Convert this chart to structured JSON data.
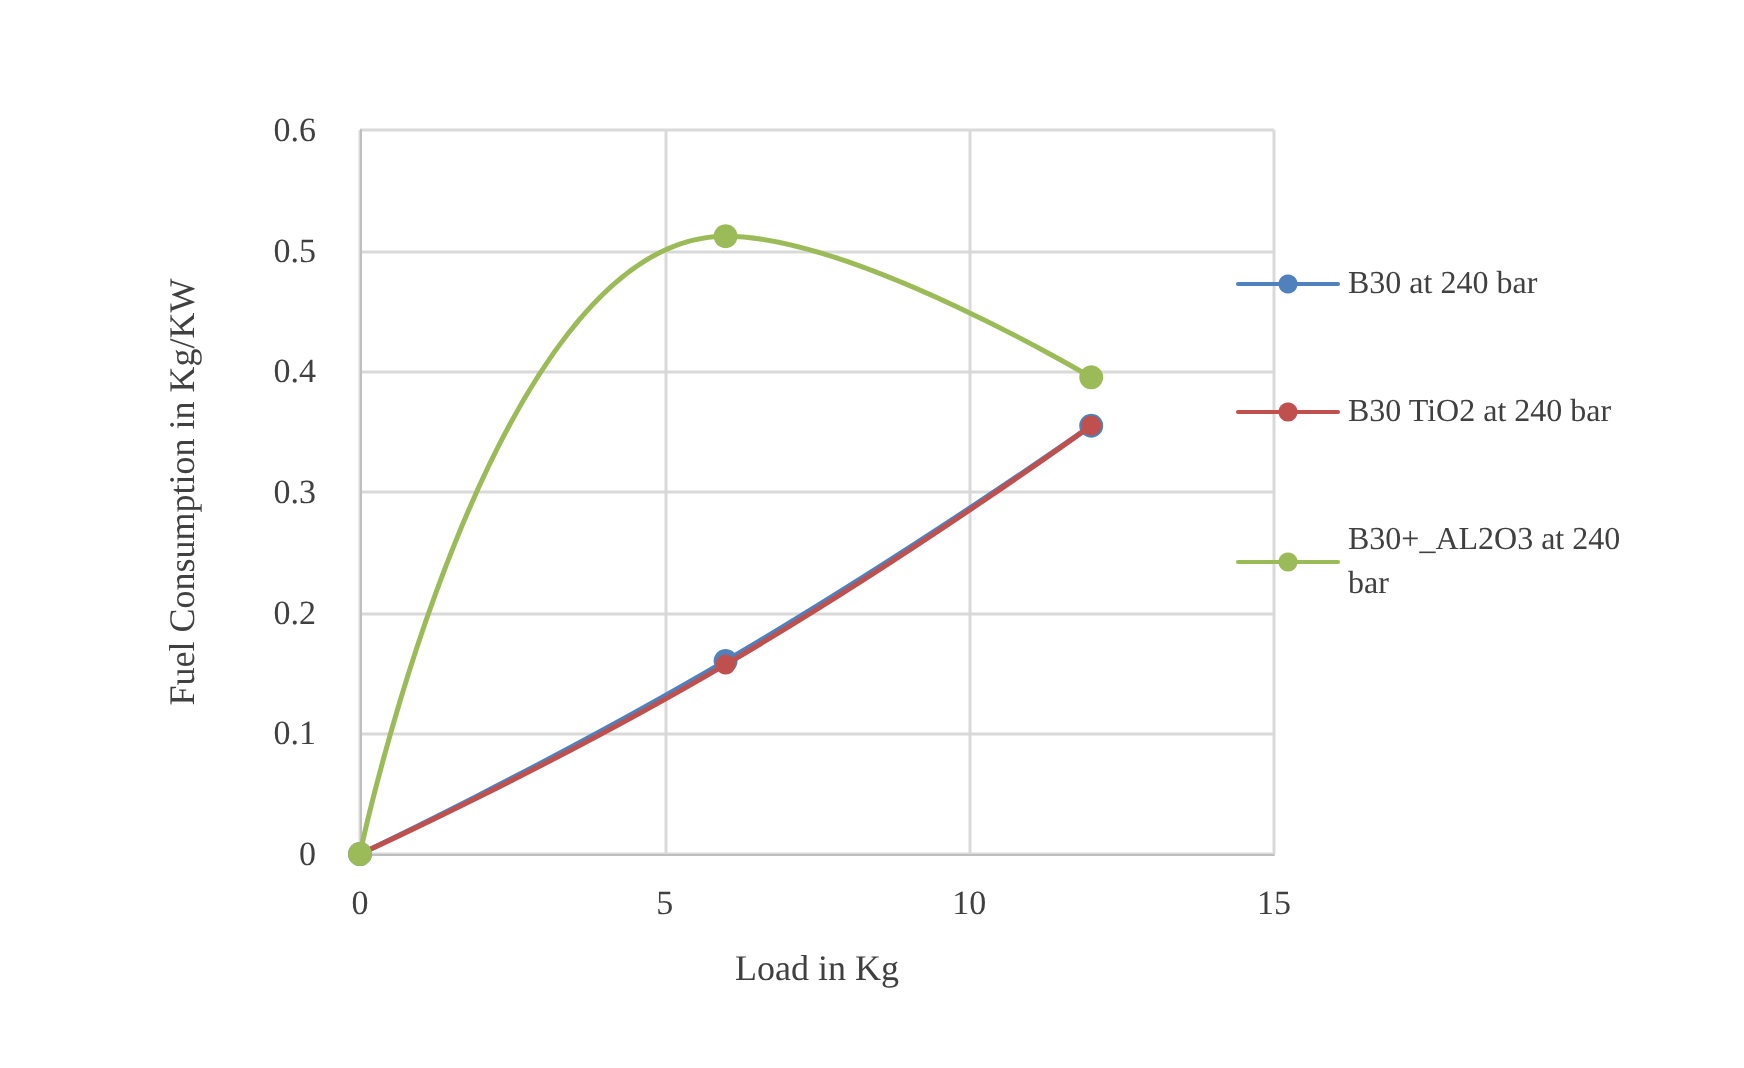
{
  "chart_data": {
    "type": "line",
    "xlabel": "Load in Kg",
    "ylabel": "Fuel Consumption in Kg/KW",
    "x": [
      0,
      6,
      12
    ],
    "series": [
      {
        "name": "B30 at 240 bar",
        "color": "#4f81bd",
        "values": [
          0,
          0.16,
          0.355
        ]
      },
      {
        "name": "B30 TiO2 at 240 bar",
        "color": "#c0504d",
        "values": [
          0,
          0.157,
          0.355
        ]
      },
      {
        "name": "B30+_AL2O3 at 240 bar",
        "color": "#9bbb59",
        "values": [
          0,
          0.512,
          0.395
        ]
      }
    ],
    "xlim": [
      0,
      15
    ],
    "xticks": [
      0,
      5,
      10,
      15
    ],
    "ylim": [
      0,
      0.6
    ],
    "yticks": [
      0,
      0.1,
      0.2,
      0.3,
      0.4,
      0.5,
      0.6
    ],
    "grid": true,
    "legend": "right",
    "marker": "circle",
    "line_style": "solid"
  }
}
